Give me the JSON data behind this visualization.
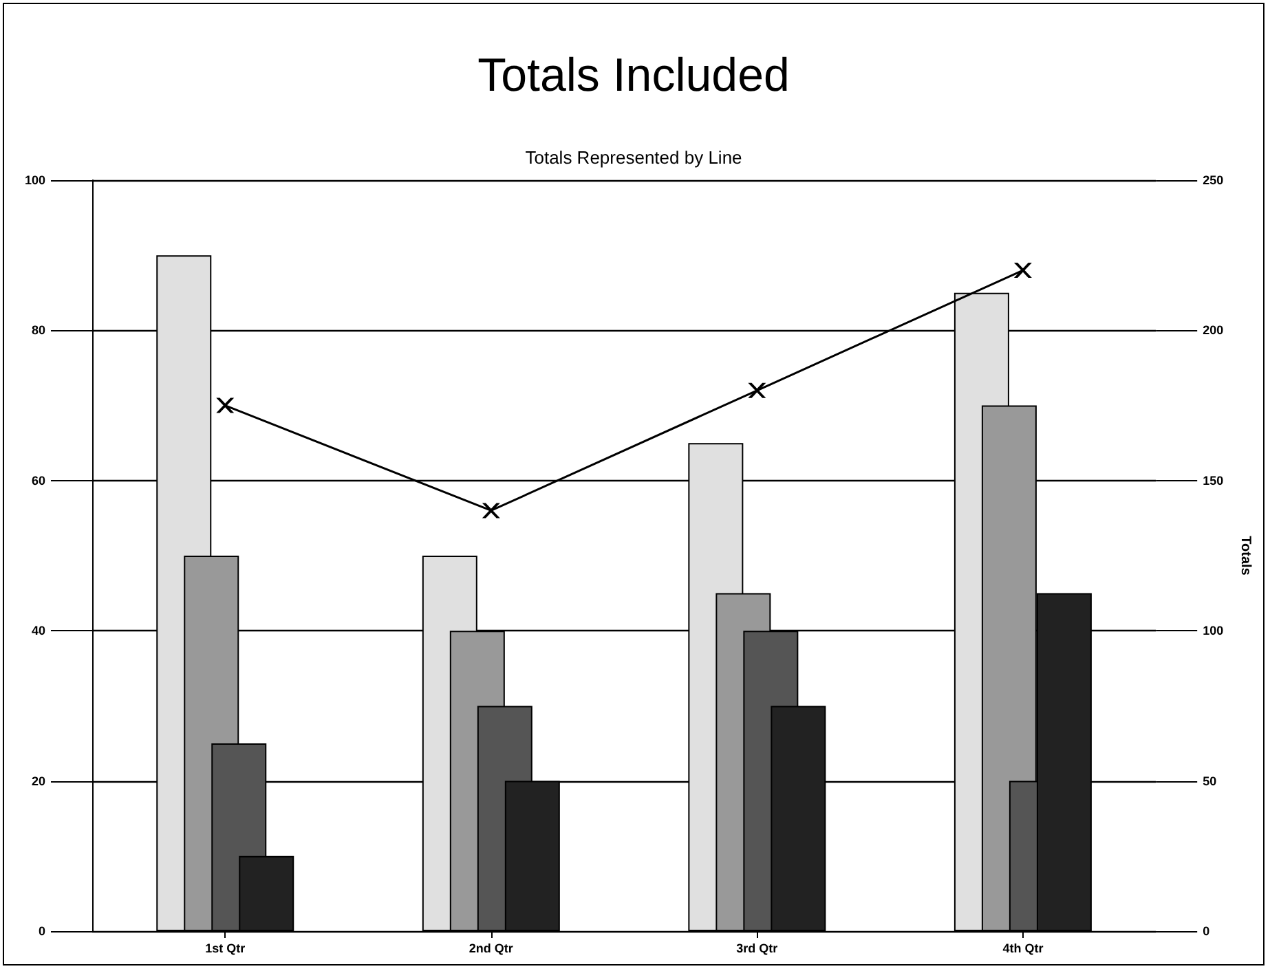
{
  "chart_data": {
    "type": "bar",
    "title": "Totals Included",
    "subtitle": "Totals Represented by Line",
    "y2label": "Totals",
    "categories": [
      "1st Qtr",
      "2nd Qtr",
      "3rd Qtr",
      "4th Qtr"
    ],
    "series": [
      {
        "color": "#e0e0e0",
        "values": [
          90,
          50,
          65,
          85
        ]
      },
      {
        "color": "#999999",
        "values": [
          50,
          40,
          45,
          70
        ]
      },
      {
        "color": "#555555",
        "values": [
          25,
          30,
          40,
          20
        ]
      },
      {
        "color": "#222222",
        "values": [
          10,
          20,
          30,
          45
        ]
      },
      {
        "type": "line",
        "axis": "y2",
        "color": "#000000",
        "values": [
          175,
          140,
          180,
          220
        ],
        "marker": "cross",
        "line_style": "solid"
      }
    ],
    "ylim": [
      0,
      100
    ],
    "yticks": [
      0,
      20,
      40,
      60,
      80,
      100
    ],
    "y2lim": [
      0,
      250
    ],
    "y2ticks": [
      0,
      50,
      100,
      150,
      200,
      250
    ],
    "grid": "y"
  }
}
